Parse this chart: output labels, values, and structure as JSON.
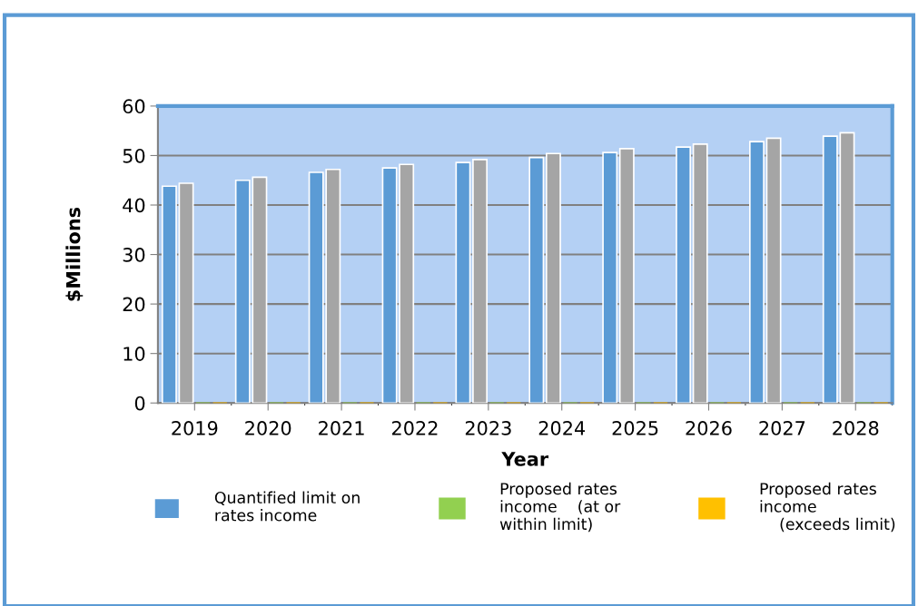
{
  "chart_data": {
    "type": "bar",
    "xlabel": "Year",
    "ylabel": "$Millions",
    "categories": [
      "2019",
      "2020",
      "2021",
      "2022",
      "2023",
      "2024",
      "2025",
      "2026",
      "2027",
      "2028"
    ],
    "series": [
      {
        "name": "Quantified limit on\nrates income",
        "color": "#5b9bd5",
        "values": [
          43.8,
          45.0,
          46.6,
          47.5,
          48.6,
          49.6,
          50.6,
          51.7,
          52.8,
          53.9
        ]
      },
      {
        "color": "#a5a5a5",
        "values": [
          44.4,
          45.6,
          47.2,
          48.2,
          49.2,
          50.4,
          51.4,
          52.3,
          53.5,
          54.6
        ]
      },
      {
        "name": "Proposed rates\nincome    (at or\nwithin limit)",
        "color": "#92d050",
        "values": [
          0,
          0,
          0,
          0,
          0,
          0,
          0,
          0,
          0,
          0
        ]
      },
      {
        "name": "Proposed rates\nincome\n    (exceeds limit)",
        "color": "#ffc000",
        "values": [
          0,
          0,
          0,
          0,
          0,
          0,
          0,
          0,
          0,
          0
        ]
      }
    ],
    "ylim": [
      0,
      60
    ],
    "yticks": [
      0,
      10,
      20,
      30,
      40,
      50,
      60
    ],
    "grid": "y",
    "legend": "bottom"
  }
}
